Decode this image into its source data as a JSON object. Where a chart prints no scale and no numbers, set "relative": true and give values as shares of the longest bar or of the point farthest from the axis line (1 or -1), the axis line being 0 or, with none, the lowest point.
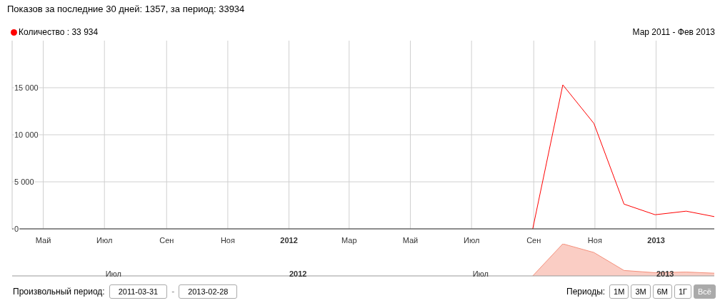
{
  "chart_data": [
    {
      "type": "line",
      "title": "Показов за последние 30 дней: 1357, за период: 33934",
      "subtitle": "Мар 2011 - Фев 2013",
      "legend": "top left",
      "grid": true,
      "x": [
        "2012-08-31",
        "2012-09-30",
        "2012-10-31",
        "2012-11-30",
        "2012-12-31",
        "2013-01-31",
        "2013-02-28"
      ],
      "series": [
        {
          "name": "Количество : 33 934",
          "color": "#ff0000",
          "values": [
            0,
            15300,
            11200,
            2630,
            1500,
            1880,
            1300
          ]
        }
      ],
      "xlim": [
        "2011-03-31",
        "2013-02-28"
      ],
      "xticks": [
        {
          "value": "2011-05-01",
          "label": "Май"
        },
        {
          "value": "2011-07-01",
          "label": "Июл"
        },
        {
          "value": "2011-09-01",
          "label": "Сен"
        },
        {
          "value": "2011-11-01",
          "label": "Ноя"
        },
        {
          "value": "2012-01-01",
          "label": "2012"
        },
        {
          "value": "2012-03-01",
          "label": "Мар"
        },
        {
          "value": "2012-05-01",
          "label": "Май"
        },
        {
          "value": "2012-07-01",
          "label": "Июл"
        },
        {
          "value": "2012-09-01",
          "label": "Сен"
        },
        {
          "value": "2012-11-01",
          "label": "Ноя"
        },
        {
          "value": "2013-01-01",
          "label": "2013"
        }
      ],
      "ylim": [
        0,
        20000
      ],
      "yticks": [
        0,
        {
          "value": 5000,
          "label": "5 000"
        },
        {
          "value": 10000,
          "label": "10 000"
        },
        {
          "value": 15000,
          "label": "15 000"
        }
      ]
    },
    {
      "type": "area",
      "relative": true,
      "x": [
        "2012-08-31",
        "2012-09-30",
        "2012-10-31",
        "2012-11-30",
        "2012-12-31",
        "2013-01-31",
        "2013-02-28"
      ],
      "series": [
        {
          "color": "#f4907c",
          "values": [
            0,
            1,
            0.73,
            0.17,
            0.1,
            0.12,
            0.085
          ]
        }
      ],
      "xlim": [
        "2011-03-31",
        "2013-02-28"
      ],
      "xticks": [
        {
          "value": "2011-07-10",
          "label": "Июл"
        },
        {
          "value": "2012-01-10",
          "label": "2012"
        },
        {
          "value": "2012-07-10",
          "label": "Июл"
        },
        {
          "value": "2013-01-10",
          "label": "2013"
        }
      ],
      "annotations": [
        "Произвольный период:",
        "2011-03-31",
        "-",
        "2013-02-28",
        "Периоды:",
        "1М",
        "3М",
        "6М",
        "1Г",
        "Всё"
      ]
    }
  ]
}
